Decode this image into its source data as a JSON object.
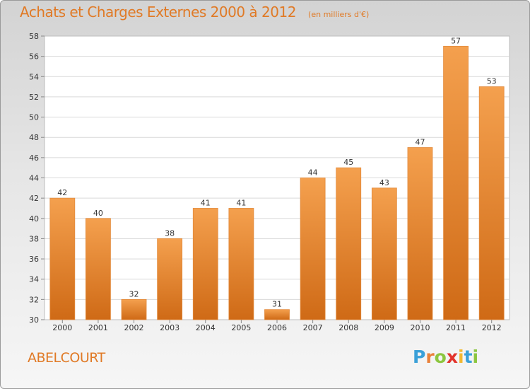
{
  "chart_data": {
    "type": "bar",
    "title": "Achats et Charges Externes 2000 à 2012",
    "subtitle": "(en milliers d'€)",
    "categories": [
      "2000",
      "2001",
      "2002",
      "2003",
      "2004",
      "2005",
      "2006",
      "2007",
      "2008",
      "2009",
      "2010",
      "2011",
      "2012"
    ],
    "values": [
      42,
      40,
      32,
      38,
      41,
      41,
      31,
      44,
      45,
      43,
      47,
      57,
      53
    ],
    "ylim": [
      30,
      58
    ],
    "yticks": [
      30,
      32,
      34,
      36,
      38,
      40,
      42,
      44,
      46,
      48,
      50,
      52,
      54,
      56,
      58
    ],
    "grid": true,
    "bar_color": "#f0923a",
    "bar_color_dark": "#d16c18"
  },
  "commune": "ABELCOURT",
  "logo": {
    "letters": [
      "P",
      "r",
      "o",
      "x",
      "i",
      "t",
      "i"
    ],
    "colors": [
      "#3aa0d8",
      "#e9813a",
      "#8cc63f",
      "#e2332b",
      "#f2b830",
      "#3aa0d8",
      "#8cc63f"
    ]
  }
}
